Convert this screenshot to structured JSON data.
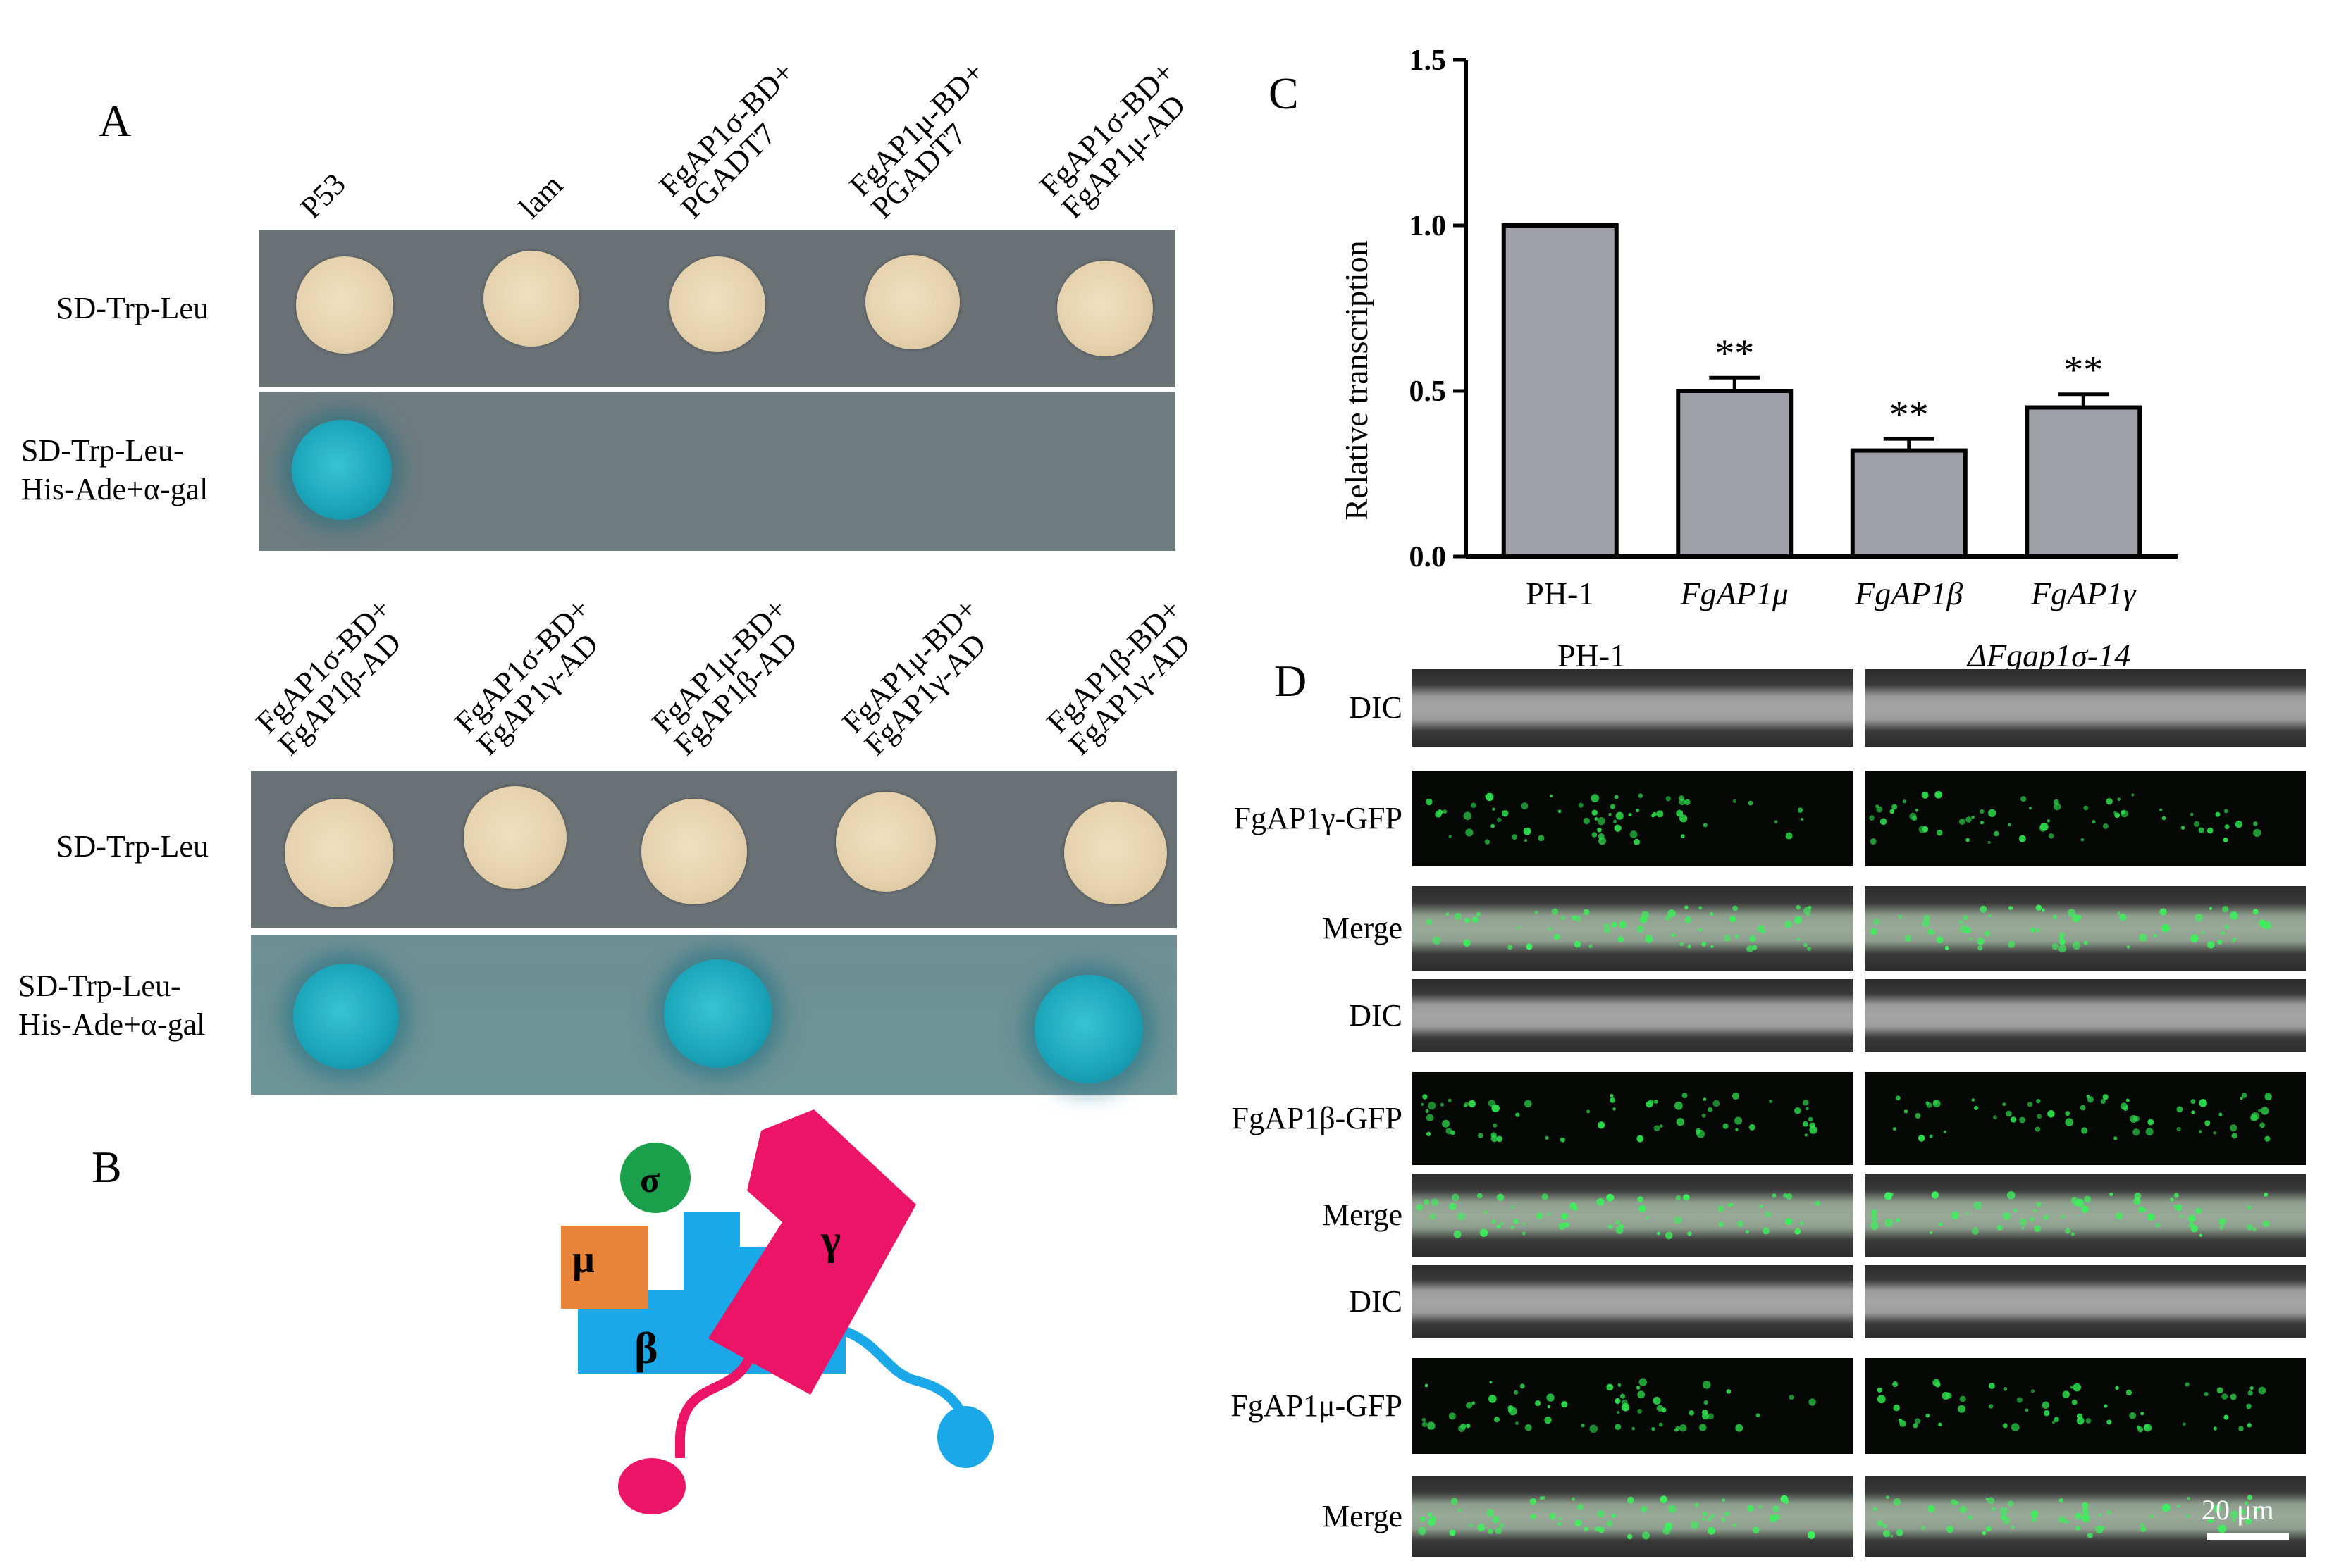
{
  "panels": {
    "a": "A",
    "b": "B",
    "c": "C",
    "d": "D"
  },
  "panel_a": {
    "top_columns": [
      "P53",
      "lam",
      "FgAP1σ-BD+\nPGADT7",
      "FgAP1μ-BD+\nPGADT7",
      "FgAP1σ-BD+\nFgAP1μ-AD"
    ],
    "bottom_columns": [
      "FgAP1σ-BD+\nFgAP1β-AD",
      "FgAP1σ-BD+\nFgAP1γ-AD",
      "FgAP1μ-BD+\nFgAP1β-AD",
      "FgAP1μ-BD+\nFgAP1γ-AD",
      "FgAP1β-BD+\nFgAP1γ-AD"
    ],
    "row_1": "SD-Trp-Leu",
    "row_2a": "SD-Trp-Leu-",
    "row_2b": "His-Ade+α-gal",
    "colors": {
      "colony": "#e8d6b2",
      "positive": "#1ea6ba",
      "plate": "#6b7276"
    }
  },
  "panel_b": {
    "sigma": "σ",
    "mu": "μ",
    "beta": "β",
    "gamma": "γ",
    "colors": {
      "sigma": "#1aa04a",
      "mu": "#e8833a",
      "beta": "#1aa8e8",
      "gamma": "#ec1466"
    }
  },
  "chart_data": {
    "type": "bar",
    "ylabel": "Relative transcription",
    "ylim": [
      0.0,
      1.5
    ],
    "yticks": [
      "0.0",
      "0.5",
      "1.0",
      "1.5"
    ],
    "categories": [
      "PH-1",
      "FgAP1μ",
      "FgAP1β",
      "FgAP1γ"
    ],
    "values": [
      1.0,
      0.5,
      0.32,
      0.45
    ],
    "errors": [
      0.0,
      0.04,
      0.035,
      0.04
    ],
    "significance": [
      "",
      "**",
      "**",
      "**"
    ],
    "bar_color": "#a0a0a8"
  },
  "panel_d": {
    "col_left": "PH-1",
    "col_right": "ΔFgap1σ-14",
    "rows": [
      "DIC",
      "FgAP1γ-GFP",
      "Merge",
      "DIC",
      "FgAP1β-GFP",
      "Merge",
      "DIC",
      "FgAP1μ-GFP",
      "Merge"
    ],
    "scale_bar": "20 μm"
  }
}
